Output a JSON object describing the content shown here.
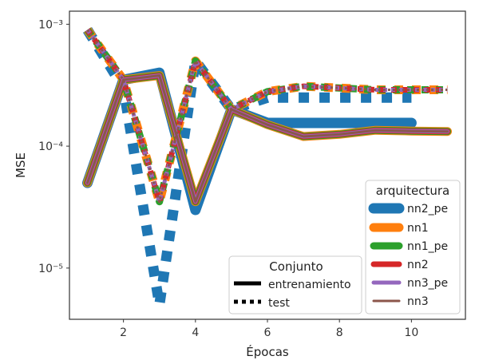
{
  "chart_data": {
    "type": "line",
    "xlabel": "Épocas",
    "ylabel": "MSE",
    "yscale": "log",
    "xlim": [
      0.5,
      11.5
    ],
    "ylim": [
      3.8e-06,
      0.00128
    ],
    "x_ticks": [
      2,
      4,
      6,
      8,
      10
    ],
    "x_tick_labels": [
      "2",
      "4",
      "6",
      "8",
      "10"
    ],
    "y_ticks": [
      1e-05,
      0.0001,
      0.001
    ],
    "grid": false,
    "legend_arquitectura": {
      "title": "arquitectura",
      "placement": "lower-right",
      "entries": [
        "nn2_pe",
        "nn1",
        "nn1_pe",
        "nn2",
        "nn3_pe",
        "nn3"
      ]
    },
    "legend_conjunto": {
      "title": "Conjunto",
      "placement": "bottom-center-right",
      "entries": [
        "entrenamiento",
        "test"
      ]
    },
    "series": [
      {
        "name": "nn2_pe",
        "conjunto": "entrenamiento",
        "color": "#1f77b4",
        "x": [
          1,
          2,
          3,
          4,
          5,
          6,
          7,
          8,
          9,
          10
        ],
        "y": [
          5e-05,
          0.00035,
          0.0004,
          3e-05,
          0.0002,
          0.000155,
          0.000155,
          0.000155,
          0.000155,
          0.000155
        ]
      },
      {
        "name": "nn2_pe",
        "conjunto": "test",
        "color": "#1f77b4",
        "x": [
          1,
          2,
          3,
          4,
          5,
          6,
          7,
          8,
          9,
          10
        ],
        "y": [
          0.0009,
          0.0003,
          5e-06,
          0.0005,
          0.0002,
          0.00025,
          0.00025,
          0.00025,
          0.00025,
          0.00025
        ]
      },
      {
        "name": "nn1",
        "conjunto": "entrenamiento",
        "color": "#ff7f0e",
        "x": [
          1,
          2,
          3,
          4,
          5,
          6,
          7,
          8,
          9,
          10,
          11
        ],
        "y": [
          5e-05,
          0.00035,
          0.00038,
          3.5e-05,
          0.0002,
          0.00015,
          0.00012,
          0.000125,
          0.000135,
          0.000133,
          0.000132
        ]
      },
      {
        "name": "nn1",
        "conjunto": "test",
        "color": "#ff7f0e",
        "x": [
          1,
          2,
          3,
          4,
          5,
          6,
          7,
          8,
          9,
          10,
          11
        ],
        "y": [
          0.0009,
          0.00035,
          3.5e-05,
          0.0005,
          0.0002,
          0.00028,
          0.00031,
          0.0003,
          0.00029,
          0.00029,
          0.00029
        ]
      },
      {
        "name": "nn1_pe",
        "conjunto": "entrenamiento",
        "color": "#2ca02c",
        "x": [
          1,
          2,
          3,
          4,
          5,
          6,
          7,
          8,
          9,
          10,
          11
        ],
        "y": [
          5e-05,
          0.00035,
          0.00038,
          3.5e-05,
          0.0002,
          0.00015,
          0.00012,
          0.000125,
          0.000135,
          0.000133,
          0.000132
        ]
      },
      {
        "name": "nn1_pe",
        "conjunto": "test",
        "color": "#2ca02c",
        "x": [
          1,
          2,
          3,
          4,
          5,
          6,
          7,
          8,
          9,
          10,
          11
        ],
        "y": [
          0.0009,
          0.00035,
          3.5e-05,
          0.0005,
          0.0002,
          0.00028,
          0.00031,
          0.0003,
          0.00029,
          0.00029,
          0.00029
        ]
      },
      {
        "name": "nn2",
        "conjunto": "entrenamiento",
        "color": "#d62728",
        "x": [
          1,
          2,
          3,
          4,
          5,
          6,
          7,
          8,
          9,
          10,
          11
        ],
        "y": [
          5e-05,
          0.00035,
          0.00038,
          3.5e-05,
          0.0002,
          0.00015,
          0.00012,
          0.000125,
          0.000135,
          0.000133,
          0.000132
        ]
      },
      {
        "name": "nn2",
        "conjunto": "test",
        "color": "#d62728",
        "x": [
          1,
          2,
          3,
          4,
          5,
          6,
          7,
          8,
          9,
          10,
          11
        ],
        "y": [
          0.0009,
          0.00035,
          3.5e-05,
          0.0005,
          0.0002,
          0.00028,
          0.00031,
          0.0003,
          0.00029,
          0.00029,
          0.00029
        ]
      },
      {
        "name": "nn3_pe",
        "conjunto": "entrenamiento",
        "color": "#9467bd",
        "x": [
          1,
          2,
          3,
          4,
          5,
          6,
          7,
          8,
          9,
          10,
          11
        ],
        "y": [
          5e-05,
          0.00035,
          0.00038,
          3.5e-05,
          0.0002,
          0.00015,
          0.00012,
          0.000125,
          0.000135,
          0.000133,
          0.000132
        ]
      },
      {
        "name": "nn3_pe",
        "conjunto": "test",
        "color": "#9467bd",
        "x": [
          1,
          2,
          3,
          4,
          5,
          6,
          7,
          8,
          9,
          10,
          11
        ],
        "y": [
          0.0009,
          0.00035,
          3.5e-05,
          0.0005,
          0.0002,
          0.00028,
          0.00031,
          0.0003,
          0.00029,
          0.00029,
          0.00029
        ]
      },
      {
        "name": "nn3",
        "conjunto": "entrenamiento",
        "color": "#8c564b",
        "x": [
          1,
          2,
          3,
          4,
          5,
          6,
          7,
          8,
          9,
          10,
          11
        ],
        "y": [
          5e-05,
          0.00035,
          0.00038,
          3.5e-05,
          0.0002,
          0.00015,
          0.00012,
          0.000125,
          0.000135,
          0.000133,
          0.000132
        ]
      },
      {
        "name": "nn3",
        "conjunto": "test",
        "color": "#8c564b",
        "x": [
          1,
          2,
          3,
          4,
          5,
          6,
          7,
          8,
          9,
          10,
          11
        ],
        "y": [
          0.0009,
          0.00035,
          3.5e-05,
          0.0005,
          0.0002,
          0.00028,
          0.00031,
          0.0003,
          0.00029,
          0.00029,
          0.00029
        ]
      }
    ]
  }
}
